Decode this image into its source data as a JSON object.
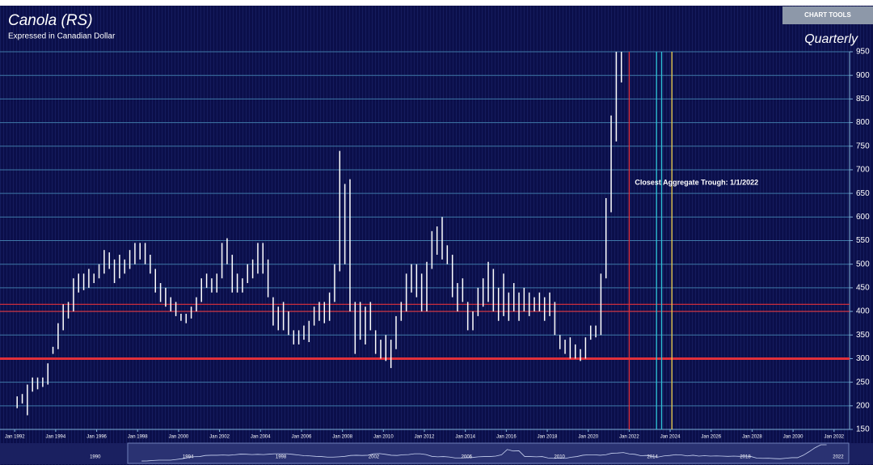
{
  "chart_data": {
    "type": "hilo",
    "title": "Canola (RS)",
    "subtitle": "Expressed in Canadian Dollar",
    "period": "Quarterly",
    "button": "CHART TOOLS",
    "annotation": "Closest Aggregate Trough: 1/1/2022",
    "color": "#ffffff",
    "x": [
      "1992-01",
      "1992-04",
      "1992-07",
      "1992-10",
      "1993-01",
      "1993-04",
      "1993-07",
      "1993-10",
      "1994-01",
      "1994-04",
      "1994-07",
      "1994-10",
      "1995-01",
      "1995-04",
      "1995-07",
      "1995-10",
      "1996-01",
      "1996-04",
      "1996-07",
      "1996-10",
      "1997-01",
      "1997-04",
      "1997-07",
      "1997-10",
      "1998-01",
      "1998-04",
      "1998-07",
      "1998-10",
      "1999-01",
      "1999-04",
      "1999-07",
      "1999-10",
      "2000-01",
      "2000-04",
      "2000-07",
      "2000-10",
      "2001-01",
      "2001-04",
      "2001-07",
      "2001-10",
      "2002-01",
      "2002-04",
      "2002-07",
      "2002-10",
      "2003-01",
      "2003-04",
      "2003-07",
      "2003-10",
      "2004-01",
      "2004-04",
      "2004-07",
      "2004-10",
      "2005-01",
      "2005-04",
      "2005-07",
      "2005-10",
      "2006-01",
      "2006-04",
      "2006-07",
      "2006-10",
      "2007-01",
      "2007-04",
      "2007-07",
      "2007-10",
      "2008-01",
      "2008-04",
      "2008-07",
      "2008-10",
      "2009-01",
      "2009-04",
      "2009-07",
      "2009-10",
      "2010-01",
      "2010-04",
      "2010-07",
      "2010-10",
      "2011-01",
      "2011-04",
      "2011-07",
      "2011-10",
      "2012-01",
      "2012-04",
      "2012-07",
      "2012-10",
      "2013-01",
      "2013-04",
      "2013-07",
      "2013-10",
      "2014-01",
      "2014-04",
      "2014-07",
      "2014-10",
      "2015-01",
      "2015-04",
      "2015-07",
      "2015-10",
      "2016-01",
      "2016-04",
      "2016-07",
      "2016-10",
      "2017-01",
      "2017-04",
      "2017-07",
      "2017-10",
      "2018-01",
      "2018-04",
      "2018-07",
      "2018-10",
      "2019-01",
      "2019-04",
      "2019-07",
      "2019-10",
      "2020-01",
      "2020-04",
      "2020-07",
      "2020-10",
      "2021-01",
      "2021-04",
      "2021-07"
    ],
    "high": [
      220,
      225,
      245,
      260,
      260,
      260,
      290,
      325,
      375,
      415,
      420,
      470,
      480,
      480,
      490,
      480,
      500,
      530,
      525,
      510,
      520,
      510,
      530,
      545,
      545,
      545,
      520,
      490,
      460,
      450,
      430,
      420,
      395,
      395,
      410,
      430,
      470,
      480,
      470,
      480,
      545,
      555,
      520,
      480,
      470,
      500,
      510,
      545,
      545,
      510,
      430,
      410,
      420,
      400,
      360,
      360,
      370,
      380,
      410,
      420,
      420,
      440,
      500,
      740,
      670,
      680,
      420,
      420,
      410,
      420,
      360,
      340,
      350,
      340,
      390,
      420,
      480,
      500,
      500,
      480,
      505,
      570,
      580,
      600,
      540,
      520,
      460,
      470,
      420,
      400,
      450,
      470,
      505,
      490,
      450,
      480,
      440,
      460,
      440,
      450,
      440,
      430,
      440,
      430,
      440,
      420,
      350,
      340,
      345,
      330,
      320,
      345,
      370,
      370,
      480,
      640,
      815,
      950,
      950
    ],
    "low": [
      195,
      205,
      180,
      230,
      235,
      240,
      245,
      310,
      320,
      360,
      385,
      400,
      440,
      445,
      450,
      460,
      470,
      480,
      490,
      460,
      470,
      480,
      490,
      500,
      510,
      500,
      480,
      440,
      420,
      410,
      400,
      390,
      380,
      375,
      385,
      400,
      420,
      450,
      440,
      440,
      470,
      500,
      440,
      440,
      440,
      460,
      470,
      480,
      480,
      430,
      370,
      360,
      360,
      350,
      330,
      330,
      340,
      335,
      370,
      380,
      375,
      380,
      420,
      485,
      500,
      400,
      310,
      340,
      330,
      360,
      310,
      300,
      295,
      280,
      320,
      380,
      400,
      440,
      430,
      400,
      400,
      490,
      520,
      510,
      500,
      430,
      400,
      420,
      360,
      360,
      390,
      410,
      420,
      400,
      380,
      390,
      380,
      400,
      380,
      400,
      390,
      400,
      400,
      380,
      390,
      350,
      320,
      310,
      300,
      300,
      295,
      300,
      340,
      345,
      350,
      470,
      610,
      760,
      885
    ],
    "xlim": [
      1991.4,
      2032.6
    ],
    "xticks": [
      {
        "value": 1992,
        "label": "Jan 1992"
      },
      {
        "value": 1994,
        "label": "Jan 1994"
      },
      {
        "value": 1996,
        "label": "Jan 1996"
      },
      {
        "value": 1998,
        "label": "Jan 1998"
      },
      {
        "value": 2000,
        "label": "Jan 2000"
      },
      {
        "value": 2002,
        "label": "Jan 2002"
      },
      {
        "value": 2004,
        "label": "Jan 2004"
      },
      {
        "value": 2006,
        "label": "Jan 2006"
      },
      {
        "value": 2008,
        "label": "Jan 2008"
      },
      {
        "value": 2010,
        "label": "Jan 2010"
      },
      {
        "value": 2012,
        "label": "Jan 2012"
      },
      {
        "value": 2014,
        "label": "Jan 2014"
      },
      {
        "value": 2016,
        "label": "Jan 2016"
      },
      {
        "value": 2018,
        "label": "Jan 2018"
      },
      {
        "value": 2020,
        "label": "Jan 2020"
      },
      {
        "value": 2022,
        "label": "Jan 2022"
      },
      {
        "value": 2024,
        "label": "Jan 2024"
      },
      {
        "value": 2026,
        "label": "Jan 2026"
      },
      {
        "value": 2028,
        "label": "Jan 2028"
      },
      {
        "value": 2030,
        "label": "Jan 2030"
      },
      {
        "value": 2032,
        "label": "Jan 2032"
      }
    ],
    "ylim": [
      150,
      950
    ],
    "yticks": [
      150,
      200,
      250,
      300,
      350,
      400,
      450,
      500,
      550,
      600,
      650,
      700,
      750,
      800,
      850,
      900,
      950
    ],
    "grid": true,
    "hlines": [
      {
        "value": 415,
        "color": "#e0303a"
      },
      {
        "value": 400,
        "color": "#e0303a"
      },
      {
        "value": 300,
        "color": "#e0303a"
      }
    ],
    "vlines": [
      {
        "x": "2022-01",
        "color": "#e0303a"
      },
      {
        "x": "2023-05",
        "color": "#2ec4d8"
      },
      {
        "x": "2023-08",
        "color": "#2ec4d8"
      },
      {
        "x": "2024-02",
        "color": "#f2d14b"
      }
    ],
    "navigator": {
      "xlim": [
        1985.9,
        2023.5
      ],
      "ticks": [
        1990,
        1994,
        1998,
        2002,
        2006,
        2010,
        2014,
        2018,
        2022
      ]
    }
  }
}
